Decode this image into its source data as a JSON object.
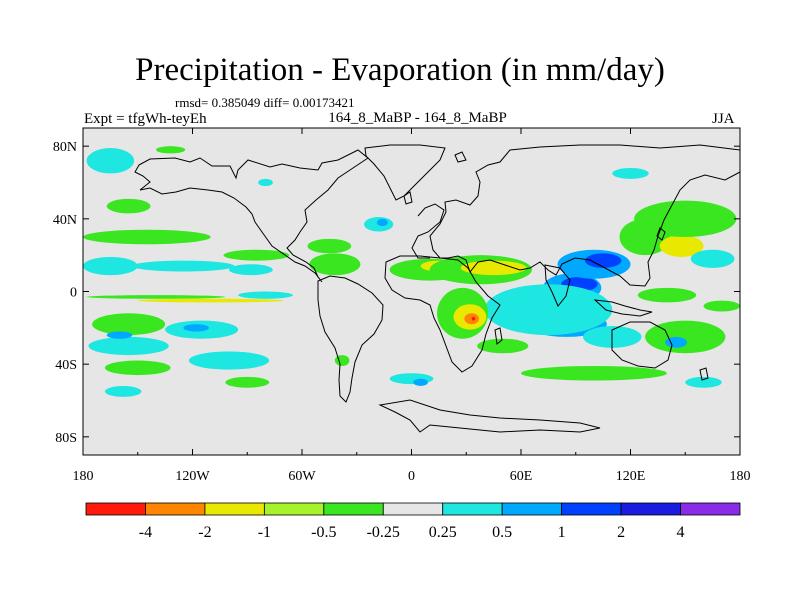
{
  "colors": {
    "ocean_neutral": "#e6e6e6",
    "land_outline": "#000000",
    "frame": "#000000"
  },
  "chart_data": {
    "type": "contour_map",
    "title": "Precipitation - Evaporation (in mm/day)",
    "stats_line": "rmsd= 0.385049 diff= 0.00173421",
    "experiment_label": "Expt = tfgWh-teyEh",
    "comparison_label": "164_8_MaBP - 164_8_MaBP",
    "season": "JJA",
    "x_axis": {
      "range": [
        -180,
        180
      ],
      "ticks": [
        {
          "value": -180,
          "label": "180"
        },
        {
          "value": -120,
          "label": "120W"
        },
        {
          "value": -60,
          "label": "60W"
        },
        {
          "value": 0,
          "label": "0"
        },
        {
          "value": 60,
          "label": "60E"
        },
        {
          "value": 120,
          "label": "120E"
        },
        {
          "value": 180,
          "label": "180"
        }
      ]
    },
    "y_axis": {
      "range": [
        -90,
        90
      ],
      "ticks": [
        {
          "value": 80,
          "label": "80N"
        },
        {
          "value": 40,
          "label": "40N"
        },
        {
          "value": 0,
          "label": "0"
        },
        {
          "value": -40,
          "label": "40S"
        },
        {
          "value": -80,
          "label": "80S"
        }
      ]
    },
    "colorbar": {
      "colors": [
        "#ff1a0d",
        "#ff8500",
        "#e8e800",
        "#a6f22b",
        "#3ae61f",
        "#e6e6e6",
        "#1ee6e0",
        "#00a8ff",
        "#0040ff",
        "#1c1ce0",
        "#8a2be8"
      ],
      "labels": [
        "-4",
        "-2",
        "-1",
        "-0.5",
        "-0.25",
        "0.25",
        "0.5",
        "1",
        "2",
        "4"
      ]
    },
    "regions": [
      {
        "name": "arctic-cyan",
        "level": "0.5",
        "lon": -165,
        "lat": 72,
        "rlon": 13,
        "rlat": 7
      },
      {
        "name": "nw-pacific-green",
        "level": "-0.5",
        "lon": -155,
        "lat": 47,
        "rlon": 12,
        "rlat": 4
      },
      {
        "name": "n-pacific-green-band",
        "level": "-0.5",
        "lon": -145,
        "lat": 30,
        "rlon": 35,
        "rlat": 4
      },
      {
        "name": "n-pacific-cyan-band",
        "level": "0.5",
        "lon": -165,
        "lat": 14,
        "rlon": 15,
        "rlat": 5
      },
      {
        "name": "c-pacific-cyan-band",
        "level": "0.5",
        "lon": -125,
        "lat": 14,
        "rlon": 28,
        "rlat": 3
      },
      {
        "name": "e-pacific-cyan-band",
        "level": "0.5",
        "lon": -88,
        "lat": 12,
        "rlon": 12,
        "rlat": 3
      },
      {
        "name": "ne-pacific-green",
        "level": "-0.5",
        "lon": -85,
        "lat": 20,
        "rlon": 18,
        "rlat": 3
      },
      {
        "name": "itcz-green-strip",
        "level": "-0.5",
        "lon": -140,
        "lat": -3,
        "rlon": 38,
        "rlat": 1
      },
      {
        "name": "itcz-yellow-strip",
        "level": "-1",
        "lon": -110,
        "lat": -5,
        "rlon": 40,
        "rlat": 1
      },
      {
        "name": "itcz-cyan-strip",
        "level": "0.5",
        "lon": -80,
        "lat": -2,
        "rlon": 15,
        "rlat": 2
      },
      {
        "name": "s-pacific-green",
        "level": "-0.5",
        "lon": -155,
        "lat": -18,
        "rlon": 20,
        "rlat": 6
      },
      {
        "name": "s-pacific-cyan-a",
        "level": "0.5",
        "lon": -155,
        "lat": -30,
        "rlon": 22,
        "rlat": 5
      },
      {
        "name": "s-pacific-blue-a",
        "level": "1",
        "lon": -160,
        "lat": -24,
        "rlon": 7,
        "rlat": 2
      },
      {
        "name": "s-pacific-cyan-b",
        "level": "0.5",
        "lon": -115,
        "lat": -21,
        "rlon": 20,
        "rlat": 5
      },
      {
        "name": "s-pacific-blue-b",
        "level": "1",
        "lon": -118,
        "lat": -20,
        "rlon": 7,
        "rlat": 2
      },
      {
        "name": "s-pacific-cyan-c",
        "level": "0.5",
        "lon": -100,
        "lat": -38,
        "rlon": 22,
        "rlat": 5
      },
      {
        "name": "s-pacific-green-b",
        "level": "-0.5",
        "lon": -150,
        "lat": -42,
        "rlon": 18,
        "rlat": 4
      },
      {
        "name": "s-pacific-green-c",
        "level": "-0.5",
        "lon": -90,
        "lat": -50,
        "rlon": 12,
        "rlat": 3
      },
      {
        "name": "s-pacific-cyan-d",
        "level": "0.5",
        "lon": -158,
        "lat": -55,
        "rlon": 10,
        "rlat": 3
      },
      {
        "name": "med-cyan",
        "level": "0.5",
        "lon": -18,
        "lat": 37,
        "rlon": 8,
        "rlat": 4
      },
      {
        "name": "med-blue",
        "level": "1",
        "lon": -16,
        "lat": 38,
        "rlon": 3,
        "rlat": 2
      },
      {
        "name": "caribbean-green",
        "level": "-0.5",
        "lon": -45,
        "lat": 25,
        "rlon": 12,
        "rlat": 4
      },
      {
        "name": "n-atlantic-green",
        "level": "-0.5",
        "lon": -42,
        "lat": 15,
        "rlon": 14,
        "rlat": 6
      },
      {
        "name": "sahel-green-band",
        "level": "-0.5",
        "lon": 10,
        "lat": 12,
        "rlon": 22,
        "rlat": 6
      },
      {
        "name": "sahel-yellow",
        "level": "-1",
        "lon": 15,
        "lat": 14,
        "rlon": 10,
        "rlat": 3
      },
      {
        "name": "arabia-green",
        "level": "-0.5",
        "lon": 38,
        "lat": 12,
        "rlon": 28,
        "rlat": 8
      },
      {
        "name": "arabia-yellow",
        "level": "-1",
        "lon": 45,
        "lat": 13,
        "rlon": 18,
        "rlat": 4
      },
      {
        "name": "india-blue",
        "level": "1",
        "lon": 88,
        "lat": 2,
        "rlon": 16,
        "rlat": 8
      },
      {
        "name": "india-dark-blue",
        "level": "2",
        "lon": 92,
        "lat": 4,
        "rlon": 10,
        "rlat": 4
      },
      {
        "name": "se-asia-blue",
        "level": "1",
        "lon": 100,
        "lat": 15,
        "rlon": 20,
        "rlat": 8
      },
      {
        "name": "se-asia-dark-blue",
        "level": "2",
        "lon": 105,
        "lat": 17,
        "rlon": 10,
        "rlat": 4
      },
      {
        "name": "indian-ocean-blue",
        "level": "1",
        "lon": 85,
        "lat": -18,
        "rlon": 22,
        "rlat": 7
      },
      {
        "name": "indian-ocean-dark-blue",
        "level": "2",
        "lon": 78,
        "lat": -16,
        "rlon": 10,
        "rlat": 3
      },
      {
        "name": "indian-ocean-cyan",
        "level": "0.5",
        "lon": 75,
        "lat": -10,
        "rlon": 35,
        "rlat": 14
      },
      {
        "name": "africa-green",
        "level": "-0.5",
        "lon": 28,
        "lat": -12,
        "rlon": 14,
        "rlat": 14
      },
      {
        "name": "africa-yellow",
        "level": "-1",
        "lon": 32,
        "lat": -14,
        "rlon": 9,
        "rlat": 7
      },
      {
        "name": "africa-orange",
        "level": "-2",
        "lon": 33,
        "lat": -15,
        "rlon": 4,
        "rlat": 3
      },
      {
        "name": "africa-red",
        "level": "-4",
        "lon": 34,
        "lat": -15,
        "rlon": 1,
        "rlat": 1
      },
      {
        "name": "madagascar-green",
        "level": "-0.5",
        "lon": 50,
        "lat": -30,
        "rlon": 14,
        "rlat": 4
      },
      {
        "name": "east-asia-green",
        "level": "-0.5",
        "lon": 128,
        "lat": 30,
        "rlon": 14,
        "rlat": 10
      },
      {
        "name": "nw-pacific-yellow",
        "level": "-1",
        "lon": 148,
        "lat": 25,
        "rlon": 12,
        "rlat": 6
      },
      {
        "name": "nw-pacific-green-band",
        "level": "-0.5",
        "lon": 150,
        "lat": 40,
        "rlon": 28,
        "rlat": 10
      },
      {
        "name": "w-pacific-cyan",
        "level": "0.5",
        "lon": 165,
        "lat": 18,
        "rlon": 12,
        "rlat": 5
      },
      {
        "name": "w-pacific-green",
        "level": "-0.5",
        "lon": 140,
        "lat": -2,
        "rlon": 16,
        "rlat": 4
      },
      {
        "name": "sw-pacific-green",
        "level": "-0.5",
        "lon": 150,
        "lat": -25,
        "rlon": 22,
        "rlat": 9
      },
      {
        "name": "sw-pacific-cyan",
        "level": "0.5",
        "lon": 110,
        "lat": -25,
        "rlon": 16,
        "rlat": 6
      },
      {
        "name": "sw-pacific-blue",
        "level": "1",
        "lon": 145,
        "lat": -28,
        "rlon": 6,
        "rlat": 3
      },
      {
        "name": "southern-ocean-green",
        "level": "-0.5",
        "lon": 100,
        "lat": -45,
        "rlon": 40,
        "rlat": 4
      },
      {
        "name": "southern-ocean-cyan",
        "level": "0.5",
        "lon": 160,
        "lat": -50,
        "rlon": 10,
        "rlat": 3
      },
      {
        "name": "s-atlantic-cyan",
        "level": "0.5",
        "lon": 0,
        "lat": -48,
        "rlon": 12,
        "rlat": 3
      },
      {
        "name": "s-atlantic-blue",
        "level": "1",
        "lon": 5,
        "lat": -50,
        "rlon": 4,
        "rlat": 2
      },
      {
        "name": "s-america-green",
        "level": "-0.5",
        "lon": -38,
        "lat": -38,
        "rlon": 4,
        "rlat": 3
      },
      {
        "name": "siberia-cyan",
        "level": "0.5",
        "lon": 120,
        "lat": 65,
        "rlon": 10,
        "rlat": 3
      },
      {
        "name": "n-america-cyan",
        "level": "0.5",
        "lon": -80,
        "lat": 60,
        "rlon": 4,
        "rlat": 2
      },
      {
        "name": "arctic-green",
        "level": "-0.5",
        "lon": -132,
        "lat": 78,
        "rlon": 8,
        "rlat": 2
      },
      {
        "name": "e-pacific-green",
        "level": "-0.5",
        "lon": 170,
        "lat": -8,
        "rlon": 10,
        "rlat": 3
      }
    ]
  }
}
